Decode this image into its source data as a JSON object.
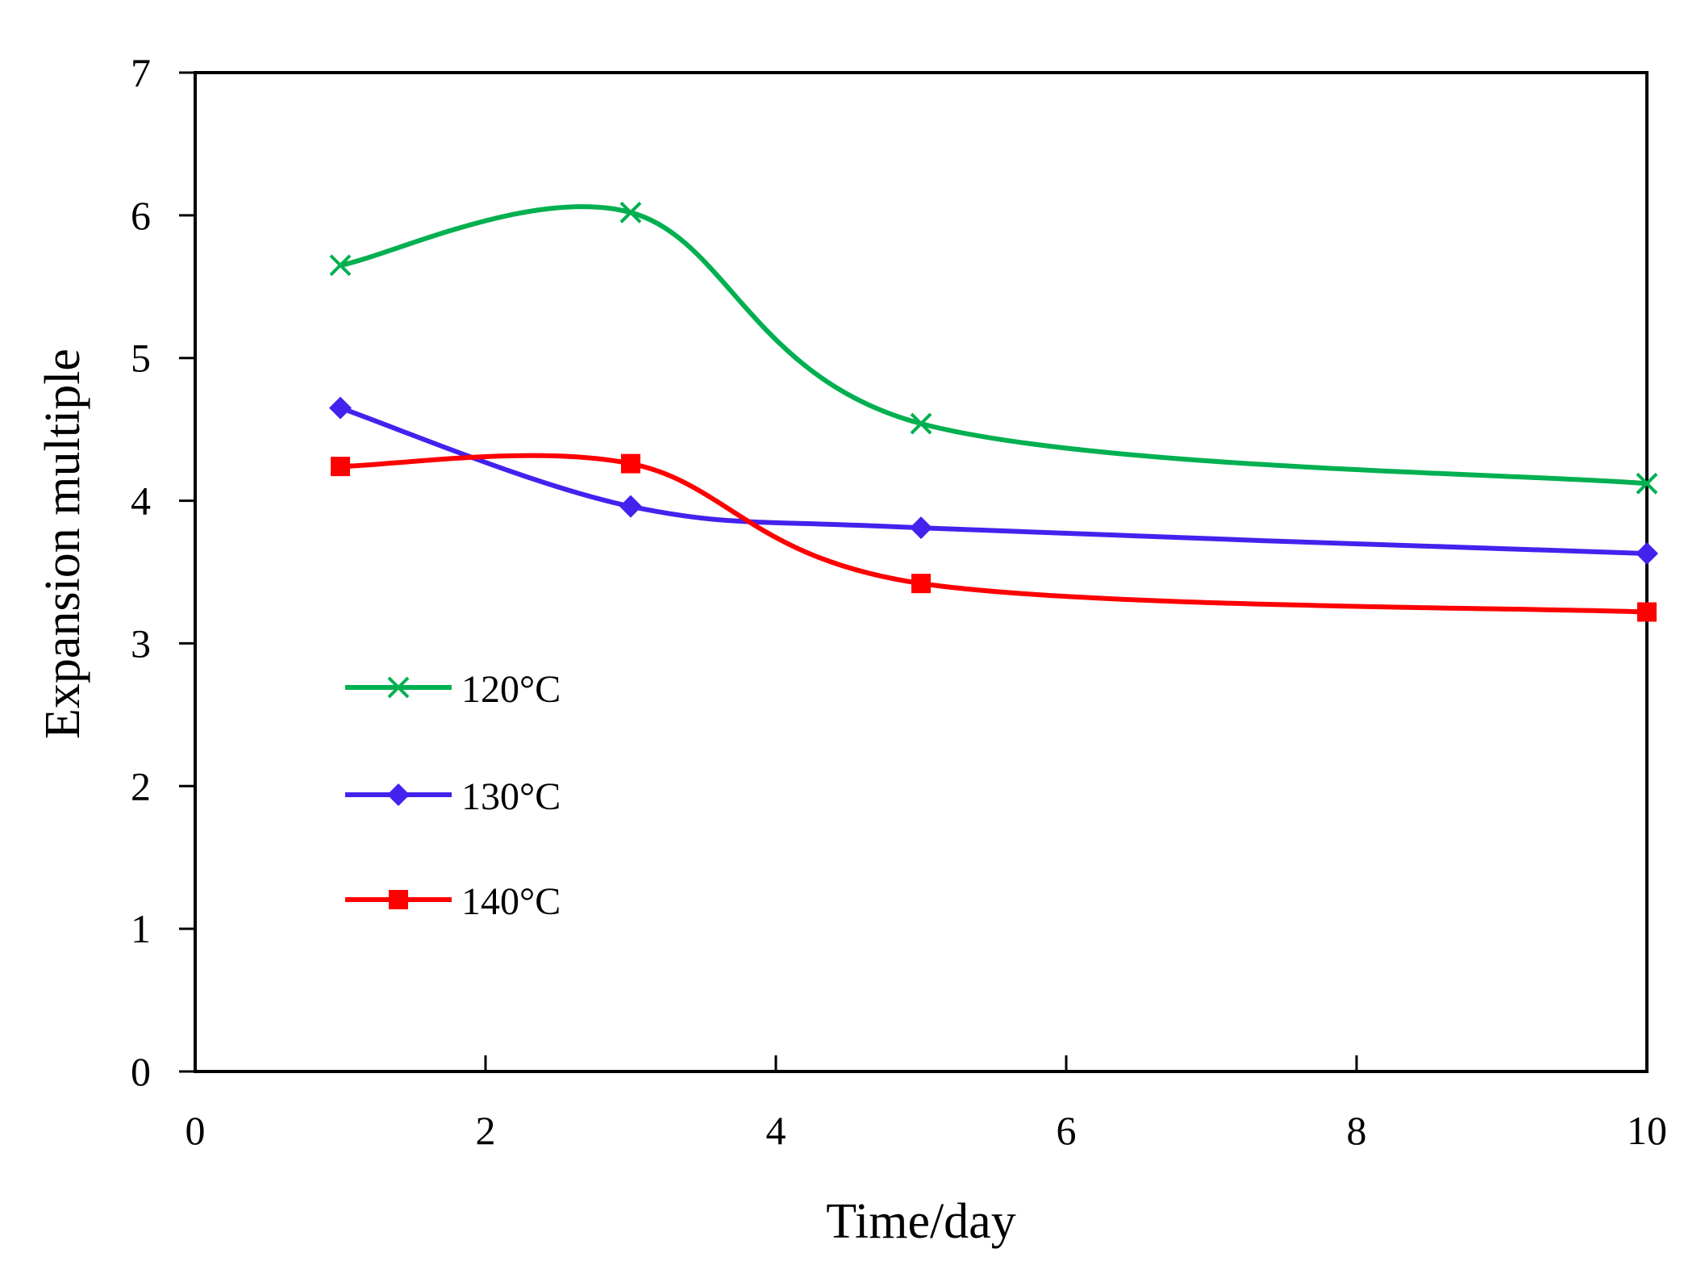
{
  "chart_data": {
    "type": "line",
    "title": "",
    "xlabel": "Time/day",
    "ylabel": "Expansion multiple",
    "xlim": [
      0,
      10
    ],
    "ylim": [
      0,
      7
    ],
    "xticks": [
      0,
      2,
      4,
      6,
      8,
      10
    ],
    "yticks": [
      0,
      1,
      2,
      3,
      4,
      5,
      6,
      7
    ],
    "grid": false,
    "legend_position": "left-middle",
    "series": [
      {
        "name": "120°C",
        "color": "#00b050",
        "marker": "x",
        "x": [
          1,
          3,
          5,
          10
        ],
        "y": [
          5.65,
          6.02,
          4.54,
          4.12
        ]
      },
      {
        "name": "130°C",
        "color": "#4422ee",
        "marker": "diamond",
        "x": [
          1,
          3,
          5,
          10
        ],
        "y": [
          4.65,
          3.96,
          3.81,
          3.63
        ]
      },
      {
        "name": "140°C",
        "color": "#ff0000",
        "marker": "square",
        "x": [
          1,
          3,
          5,
          10
        ],
        "y": [
          4.24,
          4.26,
          3.42,
          3.22
        ]
      }
    ]
  }
}
